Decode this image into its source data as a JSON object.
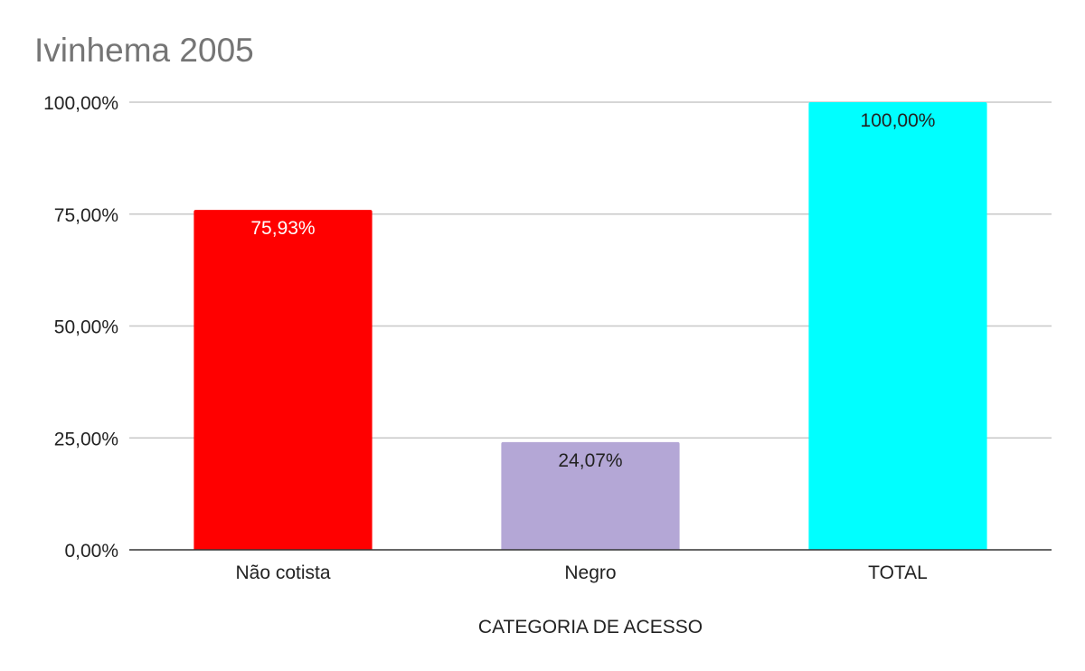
{
  "chart_data": {
    "type": "bar",
    "title": "Ivinhema 2005",
    "xlabel": "CATEGORIA DE ACESSO",
    "ylabel": "",
    "categories": [
      "Não cotista",
      "Negro",
      "TOTAL"
    ],
    "values": [
      75.93,
      24.07,
      100.0
    ],
    "value_labels": [
      "75,93%",
      "24,07%",
      "100,00%"
    ],
    "bar_colors": [
      "#ff0000",
      "#b4a7d6",
      "#00ffff"
    ],
    "label_colors": [
      "#ffffff",
      "#222222",
      "#222222"
    ],
    "ylim": [
      0,
      100
    ],
    "yticks": [
      0,
      25,
      50,
      75,
      100
    ],
    "ytick_labels": [
      "0,00%",
      "25,00%",
      "50,00%",
      "75,00%",
      "100,00%"
    ],
    "grid": true,
    "legend": "none"
  }
}
